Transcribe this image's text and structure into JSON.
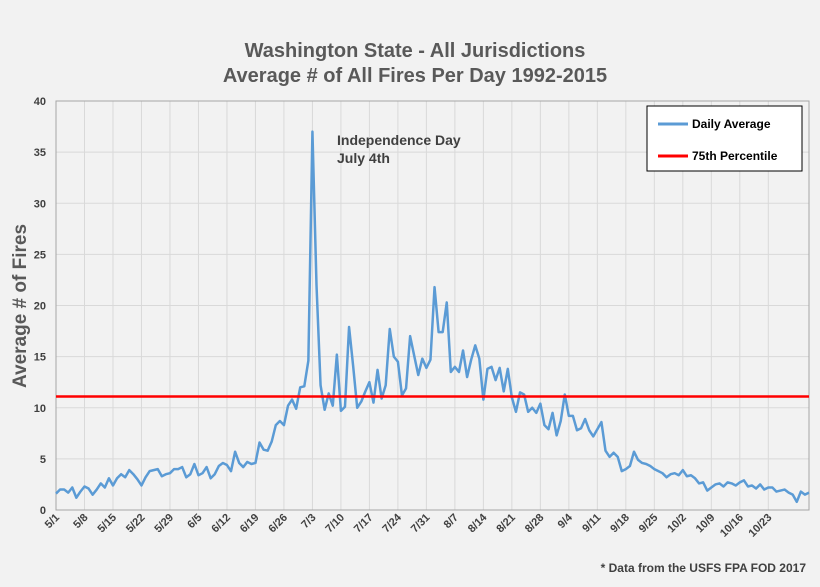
{
  "chart_data": {
    "type": "line",
    "title_line1": "Washington State - All Jurisdictions",
    "title_line2": "Average # of All Fires Per Day 1992-2015",
    "ylabel": "Average # of Fires",
    "xlabel": "",
    "ylim": [
      0,
      40
    ],
    "yticks": [
      0,
      5,
      10,
      15,
      20,
      25,
      30,
      35,
      40
    ],
    "grid": true,
    "legend_position": "top-right",
    "x_start": "5/1",
    "x_end": "10/31",
    "xtick_labels": [
      "5/1",
      "5/8",
      "5/15",
      "5/22",
      "5/29",
      "6/5",
      "6/12",
      "6/19",
      "6/26",
      "7/3",
      "7/10",
      "7/17",
      "7/24",
      "7/31",
      "8/7",
      "8/14",
      "8/21",
      "8/28",
      "9/4",
      "9/11",
      "9/18",
      "9/25",
      "10/2",
      "10/9",
      "10/16",
      "10/23"
    ],
    "series": [
      {
        "name": "Daily Average",
        "color": "#5b9bd5",
        "values": [
          1.6,
          2.0,
          2.0,
          1.7,
          2.2,
          1.2,
          1.8,
          2.3,
          2.1,
          1.5,
          2.0,
          2.6,
          2.2,
          3.1,
          2.4,
          3.1,
          3.5,
          3.2,
          3.9,
          3.5,
          3.0,
          2.4,
          3.2,
          3.8,
          3.9,
          4.0,
          3.3,
          3.5,
          3.6,
          4.0,
          4.0,
          4.2,
          3.2,
          3.5,
          4.5,
          3.4,
          3.6,
          4.2,
          3.1,
          3.5,
          4.3,
          4.6,
          4.4,
          3.8,
          5.7,
          4.6,
          4.2,
          4.7,
          4.5,
          4.6,
          6.6,
          5.9,
          5.8,
          6.7,
          8.3,
          8.7,
          8.3,
          10.2,
          10.8,
          9.9,
          12.0,
          12.1,
          14.6,
          37.0,
          22.0,
          12.2,
          9.8,
          11.4,
          10.2,
          15.2,
          9.7,
          10.1,
          17.9,
          14.1,
          10.0,
          10.6,
          11.6,
          12.5,
          10.5,
          13.7,
          10.9,
          12.2,
          17.7,
          15.0,
          14.5,
          11.2,
          11.9,
          17.0,
          15.1,
          13.2,
          14.8,
          13.9,
          14.7,
          21.8,
          17.4,
          17.4,
          20.3,
          13.5,
          14.0,
          13.5,
          15.6,
          13.0,
          14.7,
          16.1,
          14.8,
          10.8,
          13.8,
          14.0,
          12.7,
          13.9,
          11.6,
          13.8,
          11.0,
          9.6,
          11.5,
          11.3,
          9.6,
          10.0,
          9.5,
          10.4,
          8.3,
          7.9,
          9.5,
          7.3,
          8.7,
          11.3,
          9.2,
          9.2,
          7.8,
          8.0,
          8.9,
          7.8,
          7.2,
          7.9,
          8.6,
          5.8,
          5.2,
          5.6,
          5.2,
          3.8,
          4.0,
          4.3,
          5.7,
          4.9,
          4.6,
          4.5,
          4.3,
          4.0,
          3.8,
          3.6,
          3.2,
          3.5,
          3.6,
          3.4,
          3.9,
          3.3,
          3.4,
          3.1,
          2.6,
          2.7,
          1.9,
          2.2,
          2.5,
          2.6,
          2.3,
          2.7,
          2.6,
          2.4,
          2.7,
          2.9,
          2.3,
          2.4,
          2.1,
          2.5,
          2.0,
          2.2,
          2.2,
          1.8,
          1.9,
          2.0,
          1.7,
          1.5,
          0.8,
          1.8,
          1.5,
          1.7
        ]
      },
      {
        "name": "75th Percentile",
        "color": "#ff0000",
        "value": 11.1
      }
    ],
    "annotation_line1": "Independence Day",
    "annotation_line2": "July 4th",
    "annotation_x_index": 63
  },
  "source_note": "* Data from the USFS FPA FOD 2017"
}
